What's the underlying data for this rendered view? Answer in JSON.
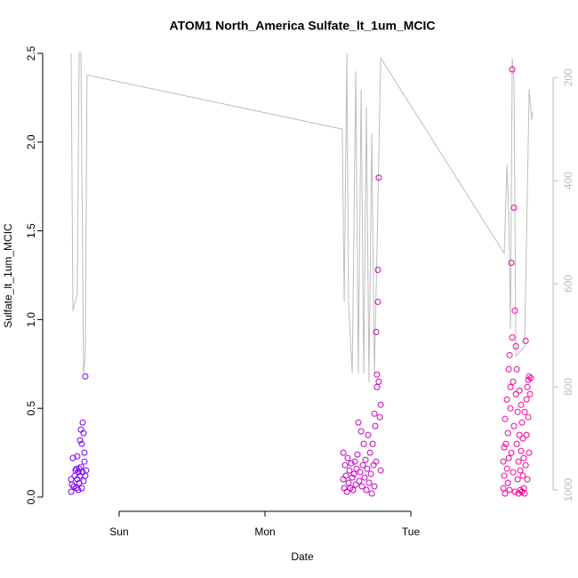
{
  "chart_data": {
    "type": "scatter",
    "title": "ATOM1 North_America Sulfate_lt_1um_MCIC",
    "xlabel": "Date",
    "ylabel": "Sulfate_lt_1um_MCIC",
    "xlim": [
      -0.451,
      2.963
    ],
    "xticks": [
      {
        "value": 0,
        "label": "Sun"
      },
      {
        "value": 1,
        "label": "Mon"
      },
      {
        "value": 2,
        "label": "Tue"
      }
    ],
    "ylim": [
      0,
      2.5
    ],
    "yticks": [
      {
        "value": 0,
        "label": "0.0"
      },
      {
        "value": 0.5,
        "label": "0.5"
      },
      {
        "value": 1,
        "label": "1.0"
      },
      {
        "value": 1.5,
        "label": "1.5"
      },
      {
        "value": 2,
        "label": "2.0"
      },
      {
        "value": 2.5,
        "label": "2.5"
      }
    ],
    "y2lim": [
      1014,
      153
    ],
    "y2ticks": [
      200,
      400,
      600,
      800,
      1000
    ],
    "y2_color": "#bebebe",
    "series": [
      {
        "type": "scatter",
        "color_gradient": [
          "#7000ff",
          "#ff0098"
        ],
        "x": [
          -0.329,
          -0.329,
          -0.323,
          -0.317,
          -0.311,
          -0.305,
          -0.299,
          -0.293,
          -0.293,
          -0.287,
          -0.287,
          -0.28,
          -0.28,
          -0.274,
          -0.274,
          -0.268,
          -0.268,
          -0.262,
          -0.262,
          -0.256,
          -0.256,
          -0.25,
          -0.25,
          -0.244,
          -0.244,
          -0.238,
          -0.238,
          -0.232,
          -0.232,
          -0.226,
          1.537,
          1.537,
          1.543,
          1.549,
          1.555,
          1.561,
          1.567,
          1.573,
          1.579,
          1.585,
          1.591,
          1.598,
          1.604,
          1.61,
          1.616,
          1.622,
          1.628,
          1.634,
          1.64,
          1.646,
          1.652,
          1.659,
          1.665,
          1.671,
          1.677,
          1.683,
          1.689,
          1.695,
          1.701,
          1.707,
          1.713,
          1.72,
          1.726,
          1.732,
          1.738,
          1.744,
          1.75,
          1.75,
          1.756,
          1.762,
          1.762,
          1.768,
          1.768,
          1.774,
          1.774,
          1.78,
          1.78,
          1.787,
          1.793,
          1.793,
          2.634,
          2.634,
          2.64,
          2.64,
          2.646,
          2.646,
          2.652,
          2.659,
          2.659,
          2.665,
          2.665,
          2.671,
          2.671,
          2.677,
          2.677,
          2.683,
          2.683,
          2.689,
          2.689,
          2.695,
          2.695,
          2.701,
          2.701,
          2.707,
          2.707,
          2.713,
          2.713,
          2.72,
          2.72,
          2.726,
          2.726,
          2.732,
          2.732,
          2.738,
          2.738,
          2.744,
          2.744,
          2.75,
          2.75,
          2.756,
          2.756,
          2.762,
          2.762,
          2.768,
          2.768,
          2.774,
          2.774,
          2.78,
          2.78,
          2.787,
          2.787,
          2.793,
          2.793,
          2.799,
          2.799,
          2.805,
          2.805,
          2.811,
          2.811,
          2.817,
          2.823
        ],
        "values": [
          0.03,
          0.1,
          0.07,
          0.22,
          0.06,
          0.12,
          0.15,
          0.16,
          0.05,
          0.23,
          0.1,
          0.14,
          0.04,
          0.16,
          0.08,
          0.32,
          0.12,
          0.38,
          0.17,
          0.3,
          0.05,
          0.42,
          0.14,
          0.36,
          0.09,
          0.2,
          0.25,
          0.68,
          0.12,
          0.15,
          0.25,
          0.1,
          0.05,
          0.18,
          0.12,
          0.03,
          0.22,
          0.08,
          0.15,
          0.05,
          0.19,
          0.11,
          0.04,
          0.13,
          0.2,
          0.07,
          0.16,
          0.24,
          0.42,
          0.09,
          0.14,
          0.37,
          0.06,
          0.18,
          0.3,
          0.11,
          0.21,
          0.04,
          0.16,
          0.35,
          0.08,
          0.25,
          0.13,
          0.02,
          0.3,
          0.18,
          0.47,
          0.06,
          0.4,
          0.2,
          0.93,
          0.62,
          0.69,
          1.1,
          1.28,
          0.65,
          1.8,
          0.45,
          0.15,
          0.52,
          0.05,
          0.2,
          0.28,
          0.12,
          0.02,
          0.44,
          0.3,
          0.16,
          0.55,
          0.08,
          0.36,
          0.72,
          0.22,
          0.8,
          0.04,
          0.5,
          0.62,
          1.32,
          0.25,
          2.41,
          0.9,
          0.14,
          0.65,
          1.63,
          0.4,
          1.05,
          0.03,
          0.85,
          0.58,
          0.3,
          0.72,
          0.1,
          0.48,
          0.2,
          0.02,
          0.35,
          0.6,
          0.04,
          0.15,
          0.26,
          0.52,
          0.03,
          0.42,
          0.12,
          0.33,
          0.05,
          0.22,
          0.02,
          0.48,
          0.88,
          0.18,
          0.55,
          0.35,
          0.62,
          0.1,
          0.66,
          0.45,
          0.68,
          0.25,
          0.58,
          0.67
        ]
      },
      {
        "type": "line",
        "axis": "y2",
        "color": "#bebebe",
        "x": [
          -0.329,
          -0.317,
          -0.287,
          -0.274,
          -0.262,
          -0.244,
          -0.232,
          -0.22,
          1.53,
          1.543,
          1.561,
          1.573,
          1.598,
          1.622,
          1.64,
          1.659,
          1.677,
          1.695,
          1.713,
          1.732,
          1.75,
          1.768,
          1.793,
          2.64,
          2.659,
          2.671,
          2.683,
          2.695,
          2.707,
          2.72,
          2.78,
          2.811,
          2.829,
          2.835
        ],
        "values": [
          153,
          653,
          619,
          153,
          153,
          774,
          740,
          195,
          300,
          636,
          153,
          636,
          774,
          188,
          774,
          222,
          774,
          257,
          791,
          309,
          774,
          533,
          162,
          541,
          369,
          464,
          688,
          162,
          205,
          740,
          722,
          222,
          283,
          266
        ]
      }
    ]
  }
}
